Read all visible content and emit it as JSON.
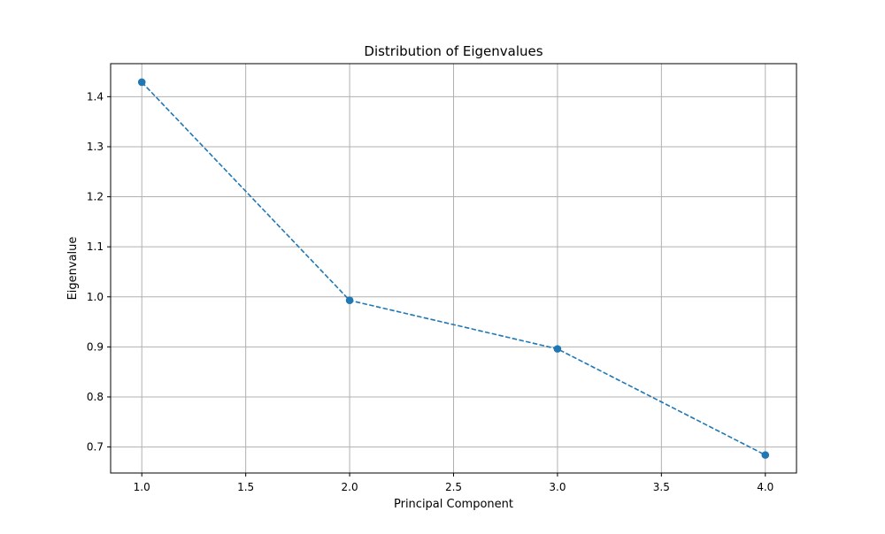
{
  "chart_data": {
    "type": "line",
    "title": "Distribution of Eigenvalues",
    "xlabel": "Principal Component",
    "ylabel": "Eigenvalue",
    "xlim": [
      0.85,
      4.15
    ],
    "ylim": [
      0.648,
      1.466
    ],
    "x_ticks": [
      1.0,
      1.5,
      2.0,
      2.5,
      3.0,
      3.5,
      4.0
    ],
    "y_ticks": [
      0.7,
      0.8,
      0.9,
      1.0,
      1.1,
      1.2,
      1.3,
      1.4
    ],
    "grid": true,
    "line_style": "dashed",
    "marker": "circle",
    "color": "#1f77b4",
    "series": [
      {
        "x": [
          1,
          2,
          3,
          4
        ],
        "y": [
          1.429,
          0.993,
          0.896,
          0.684
        ]
      }
    ]
  }
}
